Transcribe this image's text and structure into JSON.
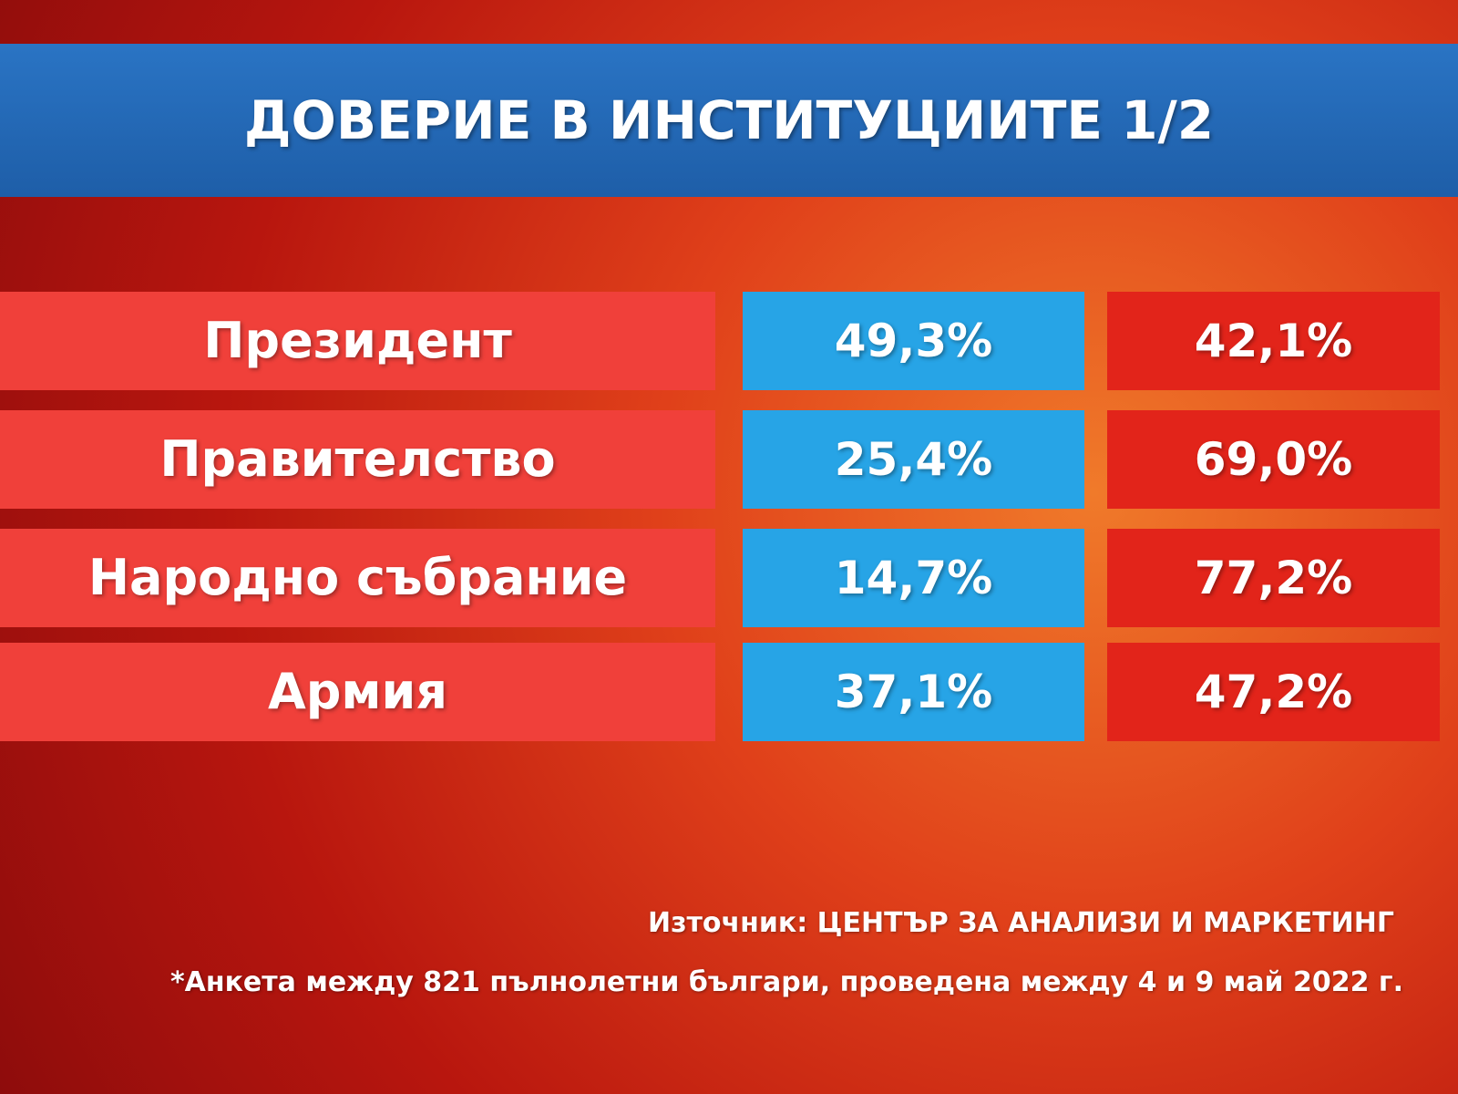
{
  "header": {
    "title": "ДОВЕРИЕ В ИНСТИТУЦИИТЕ 1/2"
  },
  "table": {
    "rows": [
      [
        "Президент",
        "49,3%",
        "42,1%"
      ],
      [
        "Правителство",
        "25,4%",
        "69,0%"
      ],
      [
        "Народно събрание",
        "14,7%",
        "77,2%"
      ],
      [
        "Армия",
        "37,1%",
        "47,2%"
      ]
    ]
  },
  "footer": {
    "source": "Източник: ЦЕНТЪР ЗА АНАЛИЗИ И МАРКЕТИНГ",
    "note": "*Анкета между 821 пълнолетни българи, проведена между 4 и 9 май 2022 г."
  }
}
